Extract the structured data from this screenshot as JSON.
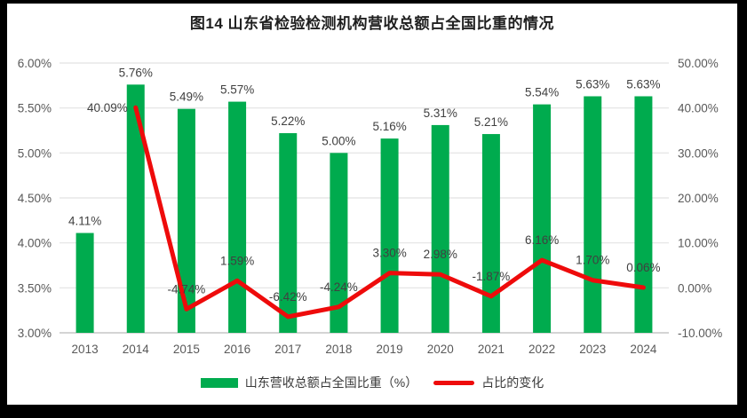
{
  "title": "图14  山东省检验检测机构营收总额占全国比重的情况",
  "colors": {
    "bar": "#00AB4E",
    "line": "#EE0B0B",
    "grid": "#E2E2E2",
    "baseline": "#C6C6C6",
    "axis_text": "#595959",
    "data_label": "#404040",
    "frame": "#000000",
    "panel": "#FFFFFF",
    "title_text": "#1F1F1F"
  },
  "legend": [
    {
      "label": "山东营收总额占全国比重（%）",
      "type": "bar",
      "color": "#00AB4E"
    },
    {
      "label": "占比的变化",
      "type": "line",
      "color": "#EE0B0B"
    }
  ],
  "chart_data": {
    "type": "bar",
    "combo": "bar+line",
    "title": "图14  山东省检验检测机构营收总额占全国比重的情况",
    "categories": [
      "2013",
      "2014",
      "2015",
      "2016",
      "2017",
      "2018",
      "2019",
      "2020",
      "2021",
      "2022",
      "2023",
      "2024"
    ],
    "series": [
      {
        "name": "山东营收总额占全国比重（%）",
        "type": "bar",
        "axis": "left",
        "color": "#00AB4E",
        "values": [
          4.11,
          5.76,
          5.49,
          5.57,
          5.22,
          5.0,
          5.16,
          5.31,
          5.21,
          5.54,
          5.63,
          5.63
        ],
        "labels": [
          "4.11%",
          "5.76%",
          "5.49%",
          "5.57%",
          "5.22%",
          "5.00%",
          "5.16%",
          "5.31%",
          "5.21%",
          "5.54%",
          "5.63%",
          "5.63%"
        ]
      },
      {
        "name": "占比的变化",
        "type": "line",
        "axis": "right",
        "color": "#EE0B0B",
        "values": [
          null,
          40.09,
          -4.74,
          1.59,
          -6.42,
          -4.24,
          3.3,
          2.98,
          -1.87,
          6.16,
          1.7,
          0.06
        ],
        "labels": [
          "",
          "40.09%",
          "-4.74%",
          "1.59%",
          "-6.42%",
          "-4.24%",
          "3.30%",
          "2.98%",
          "-1.87%",
          "6.16%",
          "1.70%",
          "0.06%"
        ]
      }
    ],
    "left_axis": {
      "min": 3.0,
      "max": 6.0,
      "step": 0.5,
      "tick_labels": [
        "6.00%",
        "5.50%",
        "5.00%",
        "4.50%",
        "4.00%",
        "3.50%",
        "3.00%"
      ]
    },
    "right_axis": {
      "min": -10,
      "max": 50,
      "step": 10,
      "tick_labels": [
        "50.00%",
        "40.00%",
        "30.00%",
        "20.00%",
        "10.00%",
        "0.00%",
        "-10.00%"
      ]
    },
    "grid": true,
    "legend_position": "bottom"
  }
}
